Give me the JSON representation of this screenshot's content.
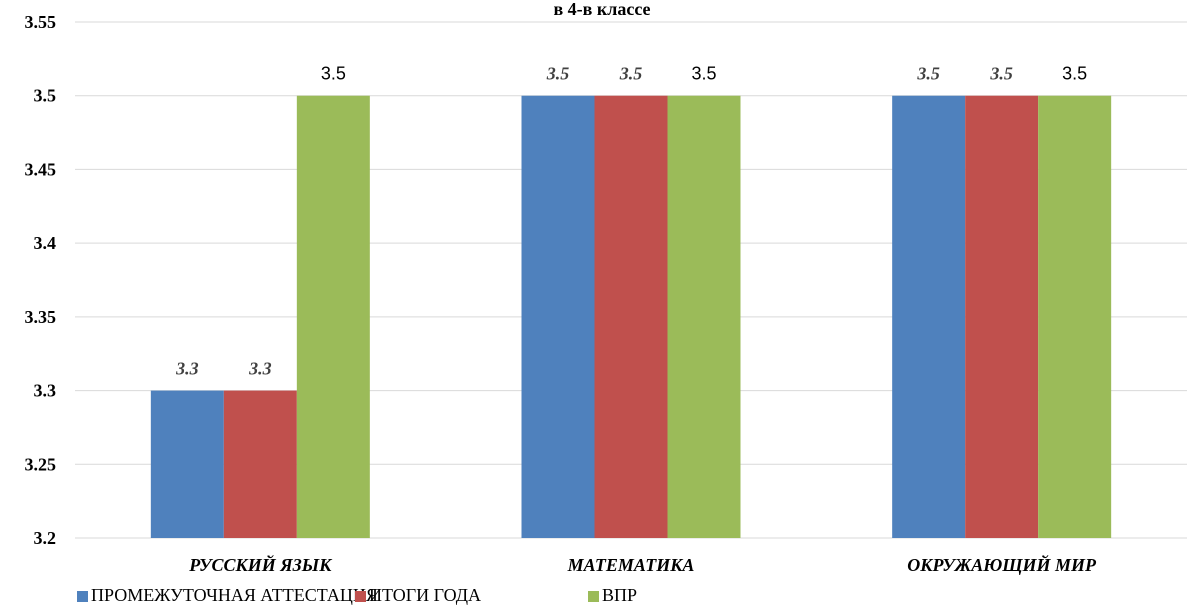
{
  "chart_data": {
    "type": "bar",
    "title": "в 4-в классе",
    "categories": [
      "РУССКИЙ ЯЗЫК",
      "МАТЕМАТИКА",
      "ОКРУЖАЮЩИЙ МИР"
    ],
    "series": [
      {
        "name": "ПРОМЕЖУТОЧНАЯ АТТЕСТАЦИЯ",
        "values": [
          3.3,
          3.5,
          3.5
        ],
        "color": "#4f81bd",
        "label_style": "italic"
      },
      {
        "name": "ИТОГИ ГОДА",
        "values": [
          3.3,
          3.5,
          3.5
        ],
        "color": "#c0504d",
        "label_style": "italic"
      },
      {
        "name": "ВПР",
        "values": [
          3.5,
          3.5,
          3.5
        ],
        "color": "#9bbb59",
        "label_style": "plain"
      }
    ],
    "ylim": [
      3.2,
      3.55
    ],
    "yticks": [
      "3.2",
      "3.25",
      "3.3",
      "3.35",
      "3.4",
      "3.45",
      "3.5",
      "3.55"
    ],
    "grid": true,
    "legend_position": "bottom-left"
  }
}
